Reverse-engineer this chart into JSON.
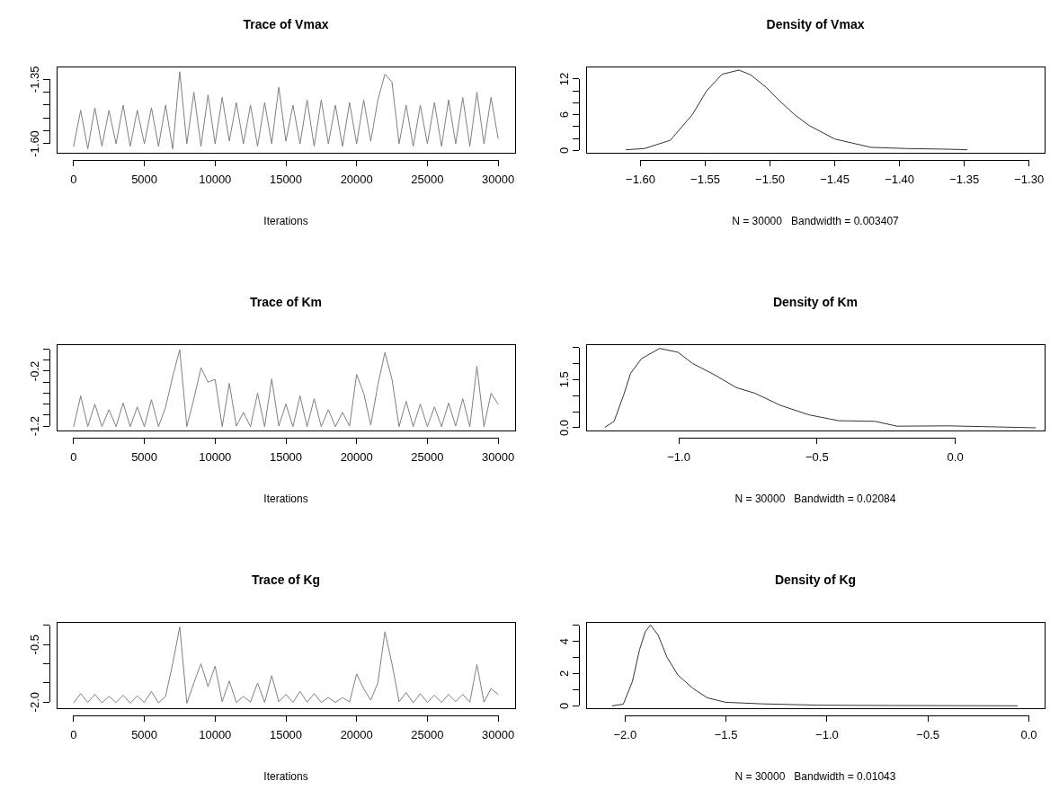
{
  "chart_data": [
    {
      "type": "line",
      "title": "Trace of Vmax",
      "xlabel": "Iterations",
      "xlim": [
        -1200,
        31200
      ],
      "ylim": [
        -1.635,
        -1.3
      ],
      "xticks": [
        0,
        5000,
        10000,
        15000,
        20000,
        25000,
        30000
      ],
      "yticks": [
        {
          "value": -1.6,
          "label": "-1.60"
        },
        {
          "value": -1.55,
          "label": null
        },
        {
          "value": -1.5,
          "label": null
        },
        {
          "value": -1.45,
          "label": null
        },
        {
          "value": -1.4,
          "label": null
        },
        {
          "value": -1.35,
          "label": "-1.35"
        }
      ],
      "x": [
        0,
        500,
        1000,
        1500,
        2000,
        2500,
        3000,
        3500,
        4000,
        4500,
        5000,
        5500,
        6000,
        6500,
        7000,
        7500,
        8000,
        8500,
        9000,
        9500,
        10000,
        10500,
        11000,
        11500,
        12000,
        12500,
        13000,
        13500,
        14000,
        14500,
        15000,
        15500,
        16000,
        16500,
        17000,
        17500,
        18000,
        18500,
        19000,
        19500,
        20000,
        20500,
        21000,
        21500,
        22000,
        22500,
        23000,
        23500,
        24000,
        24500,
        25000,
        25500,
        26000,
        26500,
        27000,
        27500,
        28000,
        28500,
        29000,
        29500,
        30000
      ],
      "series": [
        {
          "color": "#808080",
          "values": [
            -1.61,
            -1.47,
            -1.62,
            -1.46,
            -1.61,
            -1.47,
            -1.6,
            -1.45,
            -1.61,
            -1.47,
            -1.6,
            -1.46,
            -1.61,
            -1.45,
            -1.62,
            -1.32,
            -1.6,
            -1.4,
            -1.61,
            -1.41,
            -1.6,
            -1.42,
            -1.59,
            -1.44,
            -1.6,
            -1.45,
            -1.61,
            -1.44,
            -1.6,
            -1.38,
            -1.59,
            -1.45,
            -1.6,
            -1.43,
            -1.61,
            -1.43,
            -1.6,
            -1.45,
            -1.61,
            -1.44,
            -1.6,
            -1.43,
            -1.59,
            -1.43,
            -1.33,
            -1.36,
            -1.6,
            -1.45,
            -1.61,
            -1.45,
            -1.6,
            -1.44,
            -1.61,
            -1.43,
            -1.6,
            -1.42,
            -1.61,
            -1.4,
            -1.6,
            -1.42,
            -1.58
          ]
        }
      ]
    },
    {
      "type": "line",
      "title": "Density of Vmax",
      "xlabel": "N = 30000   Bandwidth = 0.003407",
      "xlim": [
        -1.642,
        -1.288
      ],
      "ylim": [
        -0.41,
        14.1
      ],
      "xticks": [
        {
          "value": -1.6,
          "label": "−1.60"
        },
        {
          "value": -1.55,
          "label": "−1.55"
        },
        {
          "value": -1.5,
          "label": "−1.50"
        },
        {
          "value": -1.45,
          "label": "−1.45"
        },
        {
          "value": -1.4,
          "label": "−1.40"
        },
        {
          "value": -1.35,
          "label": "−1.35"
        },
        {
          "value": -1.3,
          "label": "−1.30"
        }
      ],
      "yticks": [
        0,
        {
          "value": 2,
          "label": null
        },
        {
          "value": 4,
          "label": null
        },
        6,
        {
          "value": 8,
          "label": null
        },
        {
          "value": 10,
          "label": null
        },
        12
      ],
      "x": [
        -1.611,
        -1.597,
        -1.577,
        -1.56,
        -1.549,
        -1.537,
        -1.524,
        -1.515,
        -1.503,
        -1.492,
        -1.481,
        -1.47,
        -1.45,
        -1.436,
        -1.422,
        -1.394,
        -1.365,
        -1.348
      ],
      "series": [
        {
          "color": "#333333",
          "values": [
            0.1,
            0.3,
            1.7,
            6,
            10,
            12.8,
            13.5,
            12.7,
            10.6,
            8.2,
            6,
            4.2,
            1.9,
            1.2,
            0.5,
            0.3,
            0.2,
            0.1
          ]
        }
      ]
    },
    {
      "type": "line",
      "title": "Trace of Km",
      "xlabel": "Iterations",
      "xlim": [
        -1200,
        31200
      ],
      "ylim": [
        -1.28,
        0.29
      ],
      "xticks": [
        0,
        5000,
        10000,
        15000,
        20000,
        25000,
        30000
      ],
      "yticks": [
        {
          "value": -1.2,
          "label": "-1.2"
        },
        {
          "value": -1.0,
          "label": null
        },
        {
          "value": -0.8,
          "label": null
        },
        {
          "value": -0.6,
          "label": null
        },
        {
          "value": -0.4,
          "label": null
        },
        {
          "value": -0.2,
          "label": "-0.2"
        },
        {
          "value": 0,
          "label": null
        },
        {
          "value": 0.2,
          "label": null
        }
      ],
      "x": [
        0,
        500,
        1000,
        1500,
        2000,
        2500,
        3000,
        3500,
        4000,
        4500,
        5000,
        5500,
        6000,
        6500,
        7000,
        7500,
        8000,
        8500,
        9000,
        9500,
        10000,
        10500,
        11000,
        11500,
        12000,
        12500,
        13000,
        13500,
        14000,
        14500,
        15000,
        15500,
        16000,
        16500,
        17000,
        17500,
        18000,
        18500,
        19000,
        19500,
        20000,
        20500,
        21000,
        21500,
        22000,
        22500,
        23000,
        23500,
        24000,
        24500,
        25000,
        25500,
        26000,
        26500,
        27000,
        27500,
        28000,
        28500,
        29000,
        29500,
        30000
      ],
      "series": [
        {
          "color": "#808080",
          "values": [
            -1.21,
            -0.65,
            -1.21,
            -0.8,
            -1.21,
            -0.9,
            -1.21,
            -0.78,
            -1.21,
            -0.85,
            -1.21,
            -0.72,
            -1.21,
            -0.85,
            -0.3,
            0.19,
            -1.21,
            -0.7,
            -0.14,
            -0.4,
            -0.35,
            -1.21,
            -0.42,
            -1.2,
            -0.95,
            -1.21,
            -0.6,
            -1.21,
            -0.34,
            -1.2,
            -0.8,
            -1.21,
            -0.65,
            -1.21,
            -0.7,
            -1.21,
            -0.9,
            -1.21,
            -0.95,
            -1.2,
            -0.26,
            -0.6,
            -1.18,
            -0.45,
            0.14,
            -0.35,
            -1.21,
            -0.75,
            -1.21,
            -0.8,
            -1.21,
            -0.85,
            -1.21,
            -0.78,
            -1.2,
            -0.7,
            -1.21,
            -0.11,
            -1.21,
            -0.6,
            -0.8
          ]
        }
      ]
    },
    {
      "type": "line",
      "title": "Density of Km",
      "xlabel": "N = 30000   Bandwidth = 0.02084",
      "xlim": [
        -1.335,
        0.323
      ],
      "ylim": [
        -0.085,
        2.6
      ],
      "xticks": [
        {
          "value": -1.0,
          "label": "−1.0"
        },
        {
          "value": -0.5,
          "label": "−0.5"
        },
        {
          "value": 0,
          "label": "0.0"
        }
      ],
      "yticks": [
        {
          "value": 0,
          "label": "0.0"
        },
        {
          "value": 0.5,
          "label": null
        },
        {
          "value": 1.0,
          "label": null
        },
        {
          "value": 1.5,
          "label": "1.5"
        },
        {
          "value": 2.0,
          "label": null
        },
        {
          "value": 2.5,
          "label": null
        }
      ],
      "x": [
        -1.266,
        -1.234,
        -1.2,
        -1.174,
        -1.135,
        -1.069,
        -1.003,
        -0.95,
        -0.871,
        -0.792,
        -0.726,
        -0.633,
        -0.528,
        -0.422,
        -0.29,
        -0.211,
        -0.026,
        0.132,
        0.29
      ],
      "series": [
        {
          "color": "#333333",
          "values": [
            0.02,
            0.2,
            1.0,
            1.7,
            2.15,
            2.47,
            2.35,
            2.0,
            1.65,
            1.25,
            1.08,
            0.7,
            0.4,
            0.22,
            0.2,
            0.05,
            0.06,
            0.03,
            0
          ]
        }
      ]
    },
    {
      "type": "line",
      "title": "Trace of Kg",
      "xlabel": "Iterations",
      "xlim": [
        -1200,
        31200
      ],
      "ylim": [
        -2.16,
        0.09
      ],
      "xticks": [
        0,
        5000,
        10000,
        15000,
        20000,
        25000,
        30000
      ],
      "yticks": [
        {
          "value": -2.0,
          "label": "-2.0"
        },
        {
          "value": -1.5,
          "label": null
        },
        {
          "value": -1.0,
          "label": null
        },
        {
          "value": -0.5,
          "label": "-0.5"
        },
        {
          "value": 0,
          "label": null
        }
      ],
      "x": [
        0,
        500,
        1000,
        1500,
        2000,
        2500,
        3000,
        3500,
        4000,
        4500,
        5000,
        5500,
        6000,
        6500,
        7000,
        7500,
        8000,
        8500,
        9000,
        9500,
        10000,
        10500,
        11000,
        11500,
        12000,
        12500,
        13000,
        13500,
        14000,
        14500,
        15000,
        15500,
        16000,
        16500,
        17000,
        17500,
        18000,
        18500,
        19000,
        19500,
        20000,
        20500,
        21000,
        21500,
        22000,
        22500,
        23000,
        23500,
        24000,
        24500,
        25000,
        25500,
        26000,
        26500,
        27000,
        27500,
        28000,
        28500,
        29000,
        29500,
        30000
      ],
      "series": [
        {
          "color": "#808080",
          "values": [
            -2.02,
            -1.78,
            -2.01,
            -1.8,
            -2.02,
            -1.85,
            -2.01,
            -1.82,
            -2.03,
            -1.84,
            -2.01,
            -1.72,
            -2.02,
            -1.85,
            -1.0,
            -0.04,
            -2.03,
            -1.5,
            -1.0,
            -1.6,
            -1.06,
            -1.99,
            -1.45,
            -2.01,
            -1.85,
            -2.0,
            -1.5,
            -2.01,
            -1.31,
            -1.99,
            -1.8,
            -2.01,
            -1.72,
            -2.0,
            -1.78,
            -2.01,
            -1.88,
            -2.01,
            -1.88,
            -2.0,
            -1.27,
            -1.65,
            -1.95,
            -1.5,
            -0.17,
            -1.0,
            -1.99,
            -1.75,
            -2.02,
            -1.78,
            -2.01,
            -1.82,
            -2.01,
            -1.8,
            -1.99,
            -1.8,
            -2.0,
            -1.02,
            -2.0,
            -1.65,
            -1.8
          ]
        }
      ]
    },
    {
      "type": "line",
      "title": "Density of Kg",
      "xlabel": "N = 30000   Bandwidth = 0.01043",
      "xlim": [
        -2.193,
        0.078
      ],
      "ylim": [
        -0.15,
        5.2
      ],
      "xticks": [
        {
          "value": -2.0,
          "label": "−2.0"
        },
        {
          "value": -1.5,
          "label": "−1.5"
        },
        {
          "value": -1.0,
          "label": "−1.0"
        },
        {
          "value": -0.5,
          "label": "−0.5"
        },
        {
          "value": 0,
          "label": "0.0"
        }
      ],
      "yticks": [
        0,
        {
          "value": 1,
          "label": null
        },
        2,
        {
          "value": 3,
          "label": null
        },
        4,
        {
          "value": 5,
          "label": null
        }
      ],
      "x": [
        -2.063,
        -2.009,
        -1.964,
        -1.928,
        -1.9,
        -1.874,
        -1.837,
        -1.792,
        -1.738,
        -1.666,
        -1.594,
        -1.503,
        -1.322,
        -1.05,
        -0.69,
        -0.058
      ],
      "series": [
        {
          "color": "#333333",
          "values": [
            0,
            0.1,
            1.5,
            3.5,
            4.6,
            5.0,
            4.4,
            3.0,
            1.9,
            1.1,
            0.5,
            0.22,
            0.12,
            0.04,
            0.02,
            0
          ]
        }
      ]
    }
  ]
}
